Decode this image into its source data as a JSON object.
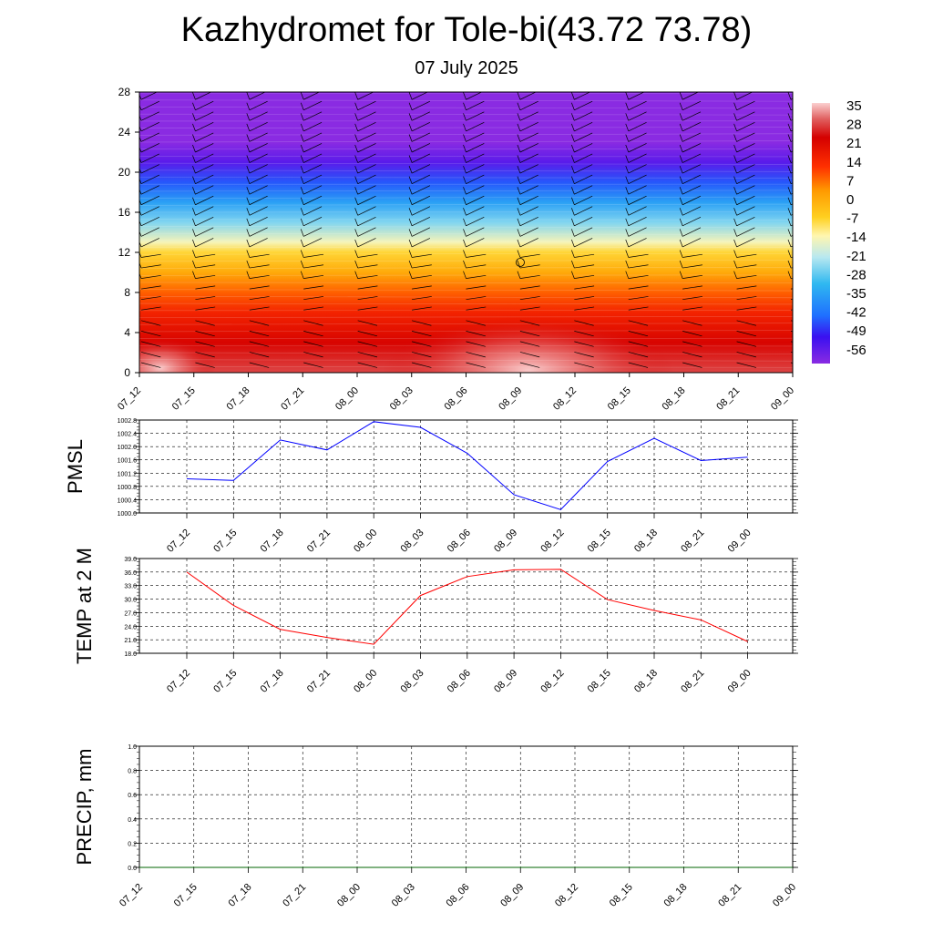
{
  "title": "Kazhydromet for Tole-bi(43.72 73.78)",
  "subtitle": "07 July 2025",
  "time_labels": [
    "07_12",
    "07_15",
    "07_18",
    "07_21",
    "08_00",
    "08_03",
    "08_06",
    "08_09",
    "08_12",
    "08_15",
    "08_18",
    "08_21",
    "09_00"
  ],
  "chart_data": [
    {
      "type": "heatmap",
      "name": "temperature-height",
      "ylim": [
        0,
        28
      ],
      "yticks": [
        0,
        4,
        8,
        12,
        16,
        20,
        24,
        28
      ],
      "colorbar": {
        "labels": [
          "35",
          "28",
          "21",
          "14",
          "7",
          "0",
          "-7",
          "-14",
          "-21",
          "-28",
          "-35",
          "-42",
          "-49",
          "-56"
        ],
        "stops": [
          {
            "v": -60,
            "color": "#8a2be2"
          },
          {
            "v": -50,
            "color": "#3a10f0"
          },
          {
            "v": -42,
            "color": "#1f6fff"
          },
          {
            "v": -30,
            "color": "#2fb8f0"
          },
          {
            "v": -20,
            "color": "#b8e8f0"
          },
          {
            "v": -12,
            "color": "#fff6b0"
          },
          {
            "v": -5,
            "color": "#ffd020"
          },
          {
            "v": 5,
            "color": "#ff9a00"
          },
          {
            "v": 14,
            "color": "#ff3000"
          },
          {
            "v": 25,
            "color": "#d40000"
          },
          {
            "v": 32,
            "color": "#e06060"
          },
          {
            "v": 38,
            "color": "#fbd0d0"
          }
        ]
      },
      "profile": [
        {
          "h": 0,
          "t": 30
        },
        {
          "h": 3,
          "t": 24
        },
        {
          "h": 6,
          "t": 17
        },
        {
          "h": 8,
          "t": 10
        },
        {
          "h": 10,
          "t": 2
        },
        {
          "h": 12,
          "t": -6
        },
        {
          "h": 13,
          "t": -13
        },
        {
          "h": 15,
          "t": -24
        },
        {
          "h": 17,
          "t": -34
        },
        {
          "h": 19,
          "t": -44
        },
        {
          "h": 21,
          "t": -54
        },
        {
          "h": 23,
          "t": -60
        },
        {
          "h": 28,
          "t": -60
        }
      ]
    },
    {
      "type": "line",
      "name": "pmsl",
      "ylabel": "PMSL",
      "ylim": [
        1000.0,
        1002.8
      ],
      "yticks": [
        "1000.0",
        "1000.4",
        "1000.8",
        "1001.2",
        "1001.6",
        "1002.0",
        "1002.4",
        "1002.8"
      ],
      "color": "#0000ff",
      "x": [
        "07_12",
        "07_15",
        "07_18",
        "07_21",
        "08_00",
        "08_03",
        "08_06",
        "08_09",
        "08_12",
        "08_15",
        "08_18",
        "08_21",
        "09_00"
      ],
      "values": [
        1001.03,
        1000.98,
        1002.2,
        1001.9,
        1002.75,
        1002.58,
        1001.8,
        1000.55,
        1000.1,
        1001.55,
        1002.25,
        1001.58,
        1001.68
      ]
    },
    {
      "type": "line",
      "name": "temp-2m",
      "ylabel": "TEMP at 2 M",
      "ylim": [
        18.0,
        39.0
      ],
      "yticks": [
        "18.0",
        "21.0",
        "24.0",
        "27.0",
        "30.0",
        "33.0",
        "36.0",
        "39.0"
      ],
      "color": "#ff0000",
      "x": [
        "07_12",
        "07_15",
        "07_18",
        "07_21",
        "08_00",
        "08_03",
        "08_06",
        "08_09",
        "08_12",
        "08_15",
        "08_18",
        "08_21",
        "09_00"
      ],
      "values": [
        36.0,
        28.6,
        23.3,
        21.5,
        20.0,
        30.8,
        35.0,
        36.5,
        36.6,
        29.9,
        27.5,
        25.4,
        20.6
      ]
    },
    {
      "type": "line",
      "name": "precip",
      "ylabel": "PRECIP, mm",
      "ylim": [
        0.0,
        1.0
      ],
      "yticks": [
        "0.0",
        "0.2",
        "0.4",
        "0.6",
        "0.8",
        "1.0"
      ],
      "color": "#006400",
      "x": [
        "07_12",
        "07_15",
        "07_18",
        "07_21",
        "08_00",
        "08_03",
        "08_06",
        "08_09",
        "08_12",
        "08_15",
        "08_18",
        "08_21",
        "09_00"
      ],
      "values": [
        0,
        0,
        0,
        0,
        0,
        0,
        0,
        0,
        0,
        0,
        0,
        0,
        0
      ]
    }
  ]
}
